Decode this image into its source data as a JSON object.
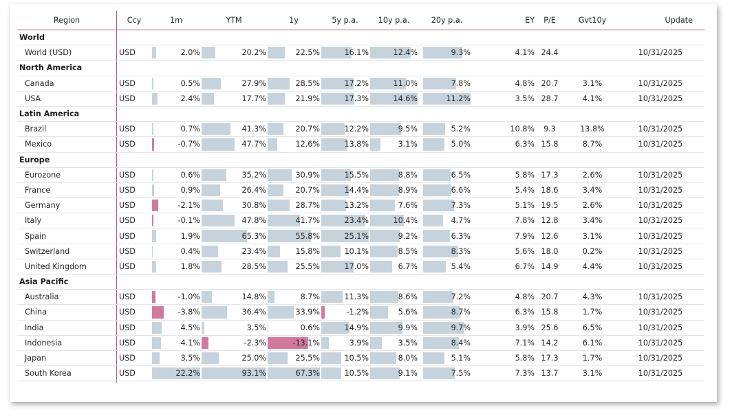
{
  "headers": {
    "region": "Region",
    "ccy": "Ccy",
    "m1": "1m",
    "ytd": "YTM",
    "y1": "1y",
    "y5": "5y p.a.",
    "y10": "10y p.a.",
    "y20": "20y p.a.",
    "ey": "EY",
    "pe": "P/E",
    "gvt10y": "Gvt10y",
    "update": "Update"
  },
  "bar_scale": {
    "m1_max": 22.2,
    "ytd_max": 93.1,
    "y1_max": 67.3,
    "y5_max": 25.1,
    "y10_max": 14.6,
    "y20_max": 11.2
  },
  "colors": {
    "positive_bar": "#c6d3dc",
    "negative_bar": "#d27a9e",
    "accent_line": "#b0558e"
  },
  "groups": [
    {
      "name": "World",
      "rows": [
        {
          "region": "World (USD)",
          "ccy": "USD",
          "m1": {
            "v": 2.0,
            "t": "2.0%"
          },
          "ytd": {
            "v": 20.2,
            "t": "20.2%"
          },
          "y1": {
            "v": 22.5,
            "t": "22.5%"
          },
          "y5": {
            "v": 16.1,
            "t": "16.1%"
          },
          "y10": {
            "v": 12.4,
            "t": "12.4%"
          },
          "y20": {
            "v": 9.3,
            "t": "9.3%"
          },
          "ey": "4.1%",
          "pe": "24.4",
          "gvt10y": "",
          "update": "10/31/2025"
        }
      ]
    },
    {
      "name": "North America",
      "rows": [
        {
          "region": "Canada",
          "ccy": "USD",
          "m1": {
            "v": 0.5,
            "t": "0.5%"
          },
          "ytd": {
            "v": 27.9,
            "t": "27.9%"
          },
          "y1": {
            "v": 28.5,
            "t": "28.5%"
          },
          "y5": {
            "v": 17.2,
            "t": "17.2%"
          },
          "y10": {
            "v": 11.0,
            "t": "11.0%"
          },
          "y20": {
            "v": 7.8,
            "t": "7.8%"
          },
          "ey": "4.8%",
          "pe": "20.7",
          "gvt10y": "3.1%",
          "update": "10/31/2025"
        },
        {
          "region": "USA",
          "ccy": "USD",
          "m1": {
            "v": 2.4,
            "t": "2.4%"
          },
          "ytd": {
            "v": 17.7,
            "t": "17.7%"
          },
          "y1": {
            "v": 21.9,
            "t": "21.9%"
          },
          "y5": {
            "v": 17.3,
            "t": "17.3%"
          },
          "y10": {
            "v": 14.6,
            "t": "14.6%"
          },
          "y20": {
            "v": 11.2,
            "t": "11.2%"
          },
          "ey": "3.5%",
          "pe": "28.7",
          "gvt10y": "4.1%",
          "update": "10/31/2025"
        }
      ]
    },
    {
      "name": "Latin America",
      "rows": [
        {
          "region": "Brazil",
          "ccy": "USD",
          "m1": {
            "v": 0.7,
            "t": "0.7%"
          },
          "ytd": {
            "v": 41.3,
            "t": "41.3%"
          },
          "y1": {
            "v": 20.7,
            "t": "20.7%"
          },
          "y5": {
            "v": 12.2,
            "t": "12.2%"
          },
          "y10": {
            "v": 9.5,
            "t": "9.5%"
          },
          "y20": {
            "v": 5.2,
            "t": "5.2%"
          },
          "ey": "10.8%",
          "pe": "9.3",
          "gvt10y": "13.8%",
          "update": "10/31/2025"
        },
        {
          "region": "Mexico",
          "ccy": "USD",
          "m1": {
            "v": -0.7,
            "t": "-0.7%"
          },
          "ytd": {
            "v": 47.7,
            "t": "47.7%"
          },
          "y1": {
            "v": 12.6,
            "t": "12.6%"
          },
          "y5": {
            "v": 13.8,
            "t": "13.8%"
          },
          "y10": {
            "v": 3.1,
            "t": "3.1%"
          },
          "y20": {
            "v": 5.0,
            "t": "5.0%"
          },
          "ey": "6.3%",
          "pe": "15.8",
          "gvt10y": "8.7%",
          "update": "10/31/2025"
        }
      ]
    },
    {
      "name": "Europe",
      "rows": [
        {
          "region": "Eurozone",
          "ccy": "USD",
          "m1": {
            "v": 0.6,
            "t": "0.6%"
          },
          "ytd": {
            "v": 35.2,
            "t": "35.2%"
          },
          "y1": {
            "v": 30.9,
            "t": "30.9%"
          },
          "y5": {
            "v": 15.5,
            "t": "15.5%"
          },
          "y10": {
            "v": 8.8,
            "t": "8.8%"
          },
          "y20": {
            "v": 6.5,
            "t": "6.5%"
          },
          "ey": "5.8%",
          "pe": "17.3",
          "gvt10y": "2.6%",
          "update": "10/31/2025"
        },
        {
          "region": "France",
          "ccy": "USD",
          "m1": {
            "v": 0.9,
            "t": "0.9%"
          },
          "ytd": {
            "v": 26.4,
            "t": "26.4%"
          },
          "y1": {
            "v": 20.7,
            "t": "20.7%"
          },
          "y5": {
            "v": 14.4,
            "t": "14.4%"
          },
          "y10": {
            "v": 8.9,
            "t": "8.9%"
          },
          "y20": {
            "v": 6.6,
            "t": "6.6%"
          },
          "ey": "5.4%",
          "pe": "18.6",
          "gvt10y": "3.4%",
          "update": "10/31/2025"
        },
        {
          "region": "Germany",
          "ccy": "USD",
          "m1": {
            "v": -2.1,
            "t": "-2.1%"
          },
          "ytd": {
            "v": 30.8,
            "t": "30.8%"
          },
          "y1": {
            "v": 28.7,
            "t": "28.7%"
          },
          "y5": {
            "v": 13.2,
            "t": "13.2%"
          },
          "y10": {
            "v": 7.6,
            "t": "7.6%"
          },
          "y20": {
            "v": 7.3,
            "t": "7.3%"
          },
          "ey": "5.1%",
          "pe": "19.5",
          "gvt10y": "2.6%",
          "update": "10/31/2025"
        },
        {
          "region": "Italy",
          "ccy": "USD",
          "m1": {
            "v": -0.1,
            "t": "-0.1%"
          },
          "ytd": {
            "v": 47.8,
            "t": "47.8%"
          },
          "y1": {
            "v": 41.7,
            "t": "41.7%"
          },
          "y5": {
            "v": 23.4,
            "t": "23.4%"
          },
          "y10": {
            "v": 10.4,
            "t": "10.4%"
          },
          "y20": {
            "v": 4.7,
            "t": "4.7%"
          },
          "ey": "7.8%",
          "pe": "12.8",
          "gvt10y": "3.4%",
          "update": "10/31/2025"
        },
        {
          "region": "Spain",
          "ccy": "USD",
          "m1": {
            "v": 1.9,
            "t": "1.9%"
          },
          "ytd": {
            "v": 65.3,
            "t": "65.3%"
          },
          "y1": {
            "v": 55.8,
            "t": "55.8%"
          },
          "y5": {
            "v": 25.1,
            "t": "25.1%"
          },
          "y10": {
            "v": 9.2,
            "t": "9.2%"
          },
          "y20": {
            "v": 6.3,
            "t": "6.3%"
          },
          "ey": "7.9%",
          "pe": "12.6",
          "gvt10y": "3.1%",
          "update": "10/31/2025"
        },
        {
          "region": "Switzerland",
          "ccy": "USD",
          "m1": {
            "v": 0.4,
            "t": "0.4%"
          },
          "ytd": {
            "v": 23.4,
            "t": "23.4%"
          },
          "y1": {
            "v": 15.8,
            "t": "15.8%"
          },
          "y5": {
            "v": 10.1,
            "t": "10.1%"
          },
          "y10": {
            "v": 8.5,
            "t": "8.5%"
          },
          "y20": {
            "v": 8.3,
            "t": "8.3%"
          },
          "ey": "5.6%",
          "pe": "18.0",
          "gvt10y": "0.2%",
          "update": "10/31/2025"
        },
        {
          "region": "United Kingdom",
          "ccy": "USD",
          "m1": {
            "v": 1.8,
            "t": "1.8%"
          },
          "ytd": {
            "v": 28.5,
            "t": "28.5%"
          },
          "y1": {
            "v": 25.5,
            "t": "25.5%"
          },
          "y5": {
            "v": 17.0,
            "t": "17.0%"
          },
          "y10": {
            "v": 6.7,
            "t": "6.7%"
          },
          "y20": {
            "v": 5.4,
            "t": "5.4%"
          },
          "ey": "6.7%",
          "pe": "14.9",
          "gvt10y": "4.4%",
          "update": "10/31/2025"
        }
      ]
    },
    {
      "name": "Asia Pacific",
      "rows": [
        {
          "region": "Australia",
          "ccy": "USD",
          "m1": {
            "v": -1.0,
            "t": "-1.0%"
          },
          "ytd": {
            "v": 14.8,
            "t": "14.8%"
          },
          "y1": {
            "v": 8.7,
            "t": "8.7%"
          },
          "y5": {
            "v": 11.3,
            "t": "11.3%"
          },
          "y10": {
            "v": 8.6,
            "t": "8.6%"
          },
          "y20": {
            "v": 7.2,
            "t": "7.2%"
          },
          "ey": "4.8%",
          "pe": "20.7",
          "gvt10y": "4.3%",
          "update": "10/31/2025"
        },
        {
          "region": "China",
          "ccy": "USD",
          "m1": {
            "v": -3.8,
            "t": "-3.8%"
          },
          "ytd": {
            "v": 36.4,
            "t": "36.4%"
          },
          "y1": {
            "v": 33.9,
            "t": "33.9%"
          },
          "y5": {
            "v": -1.2,
            "t": "-1.2%"
          },
          "y10": {
            "v": 5.6,
            "t": "5.6%"
          },
          "y20": {
            "v": 8.7,
            "t": "8.7%"
          },
          "ey": "6.3%",
          "pe": "15.8",
          "gvt10y": "1.7%",
          "update": "10/31/2025"
        },
        {
          "region": "India",
          "ccy": "USD",
          "m1": {
            "v": 4.5,
            "t": "4.5%"
          },
          "ytd": {
            "v": 3.5,
            "t": "3.5%"
          },
          "y1": {
            "v": 0.6,
            "t": "0.6%"
          },
          "y5": {
            "v": 14.9,
            "t": "14.9%"
          },
          "y10": {
            "v": 9.9,
            "t": "9.9%"
          },
          "y20": {
            "v": 9.7,
            "t": "9.7%"
          },
          "ey": "3.9%",
          "pe": "25.6",
          "gvt10y": "6.5%",
          "update": "10/31/2025"
        },
        {
          "region": "Indonesia",
          "ccy": "USD",
          "m1": {
            "v": 4.1,
            "t": "4.1%"
          },
          "ytd": {
            "v": -2.3,
            "t": "-2.3%"
          },
          "y1": {
            "v": -13.1,
            "t": "-13.1%"
          },
          "y5": {
            "v": 3.9,
            "t": "3.9%"
          },
          "y10": {
            "v": 3.5,
            "t": "3.5%"
          },
          "y20": {
            "v": 8.4,
            "t": "8.4%"
          },
          "ey": "7.1%",
          "pe": "14.2",
          "gvt10y": "6.1%",
          "update": "10/31/2025"
        },
        {
          "region": "Japan",
          "ccy": "USD",
          "m1": {
            "v": 3.5,
            "t": "3.5%"
          },
          "ytd": {
            "v": 25.0,
            "t": "25.0%"
          },
          "y1": {
            "v": 25.5,
            "t": "25.5%"
          },
          "y5": {
            "v": 10.5,
            "t": "10.5%"
          },
          "y10": {
            "v": 8.0,
            "t": "8.0%"
          },
          "y20": {
            "v": 5.1,
            "t": "5.1%"
          },
          "ey": "5.8%",
          "pe": "17.3",
          "gvt10y": "1.7%",
          "update": "10/31/2025"
        },
        {
          "region": "South Korea",
          "ccy": "USD",
          "m1": {
            "v": 22.2,
            "t": "22.2%"
          },
          "ytd": {
            "v": 93.1,
            "t": "93.1%"
          },
          "y1": {
            "v": 67.3,
            "t": "67.3%"
          },
          "y5": {
            "v": 10.5,
            "t": "10.5%"
          },
          "y10": {
            "v": 9.1,
            "t": "9.1%"
          },
          "y20": {
            "v": 7.5,
            "t": "7.5%"
          },
          "ey": "7.3%",
          "pe": "13.7",
          "gvt10y": "3.1%",
          "update": "10/31/2025"
        }
      ]
    }
  ]
}
